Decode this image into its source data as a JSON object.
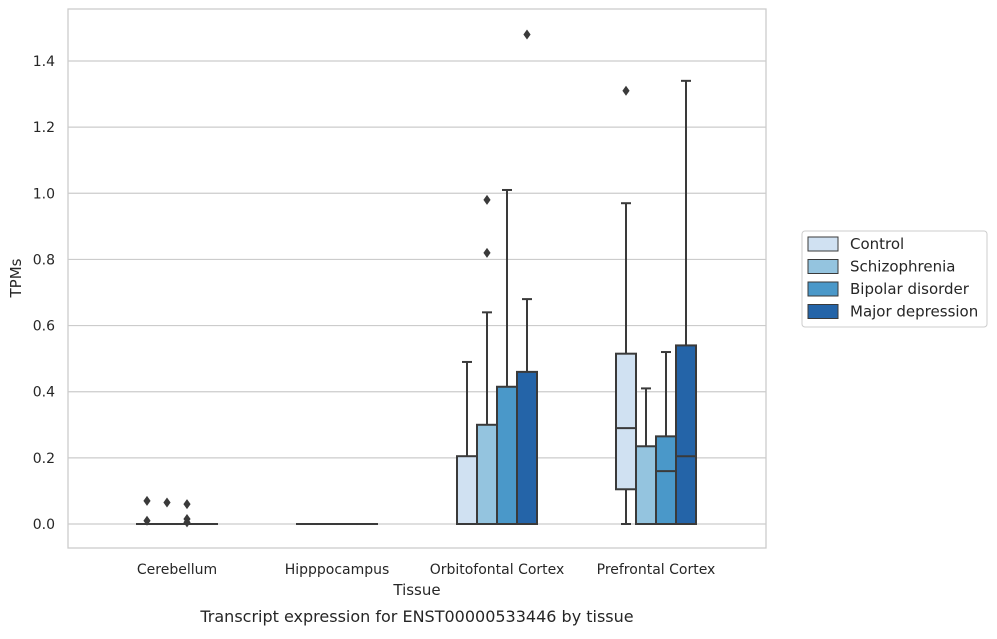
{
  "chart_data": {
    "type": "boxplot",
    "caption": "Transcript expression for ENST00000533446 by tissue",
    "xlabel": "Tissue",
    "ylabel": "TPMs",
    "ylim": [
      -0.07,
      1.56
    ],
    "yticks": [
      0.0,
      0.2,
      0.4,
      0.6,
      0.8,
      1.0,
      1.2,
      1.4
    ],
    "ytick_labels": [
      "0.0",
      "0.2",
      "0.4",
      "0.6",
      "0.8",
      "1.0",
      "1.2",
      "1.4"
    ],
    "grid": "horizontal",
    "legend_position": "right",
    "categories": [
      "Cerebellum",
      "Hipppocampus",
      "Orbitofontal Cortex",
      "Prefrontal Cortex"
    ],
    "series": [
      {
        "name": "Control",
        "color": "#d0e1f2",
        "boxes": [
          {
            "category": "Cerebellum",
            "whisker_low": 0,
            "q1": 0,
            "median": 0,
            "q3": 0,
            "whisker_high": 0,
            "outliers": [
              0.07,
              0.01
            ]
          },
          {
            "category": "Hipppocampus",
            "whisker_low": 0,
            "q1": 0,
            "median": 0,
            "q3": 0,
            "whisker_high": 0,
            "outliers": []
          },
          {
            "category": "Orbitofontal Cortex",
            "whisker_low": 0,
            "q1": 0,
            "median": 0,
            "q3": 0.205,
            "whisker_high": 0.49,
            "outliers": []
          },
          {
            "category": "Prefrontal Cortex",
            "whisker_low": 0,
            "q1": 0.105,
            "median": 0.29,
            "q3": 0.515,
            "whisker_high": 0.97,
            "outliers": [
              1.31
            ]
          }
        ]
      },
      {
        "name": "Schizophrenia",
        "color": "#94c4df",
        "boxes": [
          {
            "category": "Cerebellum",
            "whisker_low": 0,
            "q1": 0,
            "median": 0,
            "q3": 0,
            "whisker_high": 0,
            "outliers": [
              0.065
            ]
          },
          {
            "category": "Hipppocampus",
            "whisker_low": 0,
            "q1": 0,
            "median": 0,
            "q3": 0,
            "whisker_high": 0,
            "outliers": []
          },
          {
            "category": "Orbitofontal Cortex",
            "whisker_low": 0,
            "q1": 0,
            "median": 0,
            "q3": 0.3,
            "whisker_high": 0.64,
            "outliers": [
              0.82,
              0.98
            ]
          },
          {
            "category": "Prefrontal Cortex",
            "whisker_low": 0,
            "q1": 0,
            "median": 0,
            "q3": 0.235,
            "whisker_high": 0.41,
            "outliers": []
          }
        ]
      },
      {
        "name": "Bipolar disorder",
        "color": "#4a98c9",
        "boxes": [
          {
            "category": "Cerebellum",
            "whisker_low": 0,
            "q1": 0,
            "median": 0,
            "q3": 0,
            "whisker_high": 0,
            "outliers": [
              0.06,
              0.015,
              0.005
            ]
          },
          {
            "category": "Hipppocampus",
            "whisker_low": 0,
            "q1": 0,
            "median": 0,
            "q3": 0,
            "whisker_high": 0,
            "outliers": []
          },
          {
            "category": "Orbitofontal Cortex",
            "whisker_low": 0,
            "q1": 0,
            "median": 0,
            "q3": 0.415,
            "whisker_high": 1.01,
            "outliers": []
          },
          {
            "category": "Prefrontal Cortex",
            "whisker_low": 0,
            "q1": 0,
            "median": 0.16,
            "q3": 0.265,
            "whisker_high": 0.52,
            "outliers": []
          }
        ]
      },
      {
        "name": "Major depression",
        "color": "#2464a8",
        "boxes": [
          {
            "category": "Cerebellum",
            "whisker_low": 0,
            "q1": 0,
            "median": 0,
            "q3": 0,
            "whisker_high": 0,
            "outliers": []
          },
          {
            "category": "Hipppocampus",
            "whisker_low": 0,
            "q1": 0,
            "median": 0,
            "q3": 0,
            "whisker_high": 0,
            "outliers": []
          },
          {
            "category": "Orbitofontal Cortex",
            "whisker_low": 0,
            "q1": 0,
            "median": 0,
            "q3": 0.46,
            "whisker_high": 0.68,
            "outliers": [
              1.48
            ]
          },
          {
            "category": "Prefrontal Cortex",
            "whisker_low": 0,
            "q1": 0,
            "median": 0.205,
            "q3": 0.54,
            "whisker_high": 1.34,
            "outliers": []
          }
        ]
      }
    ],
    "colors": {
      "edge": "#3a3a3a",
      "grid": "#cccccc",
      "frame": "#cccccc",
      "text": "#262626"
    }
  }
}
